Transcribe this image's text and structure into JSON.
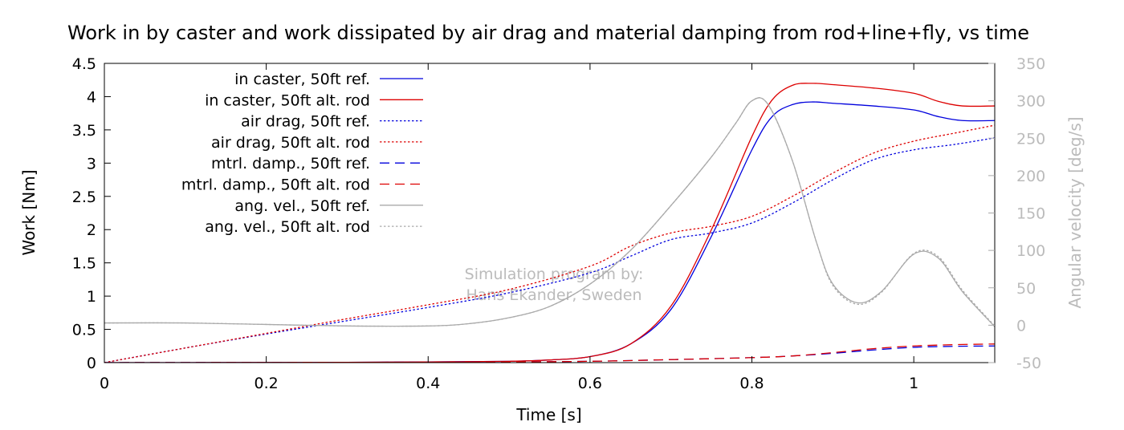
{
  "chart_data": {
    "type": "line",
    "title": "Work in by caster and work dissipated by air drag and material damping from rod+line+fly, vs time",
    "xlabel": "Time [s]",
    "ylabel": "Work [Nm]",
    "y2label": "Angular velocity [deg/s]",
    "xlim": [
      0,
      1.1
    ],
    "ylim": [
      0,
      4.5
    ],
    "y2lim": [
      -50,
      350
    ],
    "grid": false,
    "legend_position": "top-left",
    "xticks": [
      "0",
      "0.2",
      "0.4",
      "0.6",
      "0.8",
      "1"
    ],
    "xtick_values": [
      0,
      0.2,
      0.4,
      0.6,
      0.8,
      1.0
    ],
    "yticks": [
      "0",
      "0.5",
      "1",
      "1.5",
      "2",
      "2.5",
      "3",
      "3.5",
      "4",
      "4.5"
    ],
    "ytick_values": [
      0,
      0.5,
      1,
      1.5,
      2,
      2.5,
      3,
      3.5,
      4,
      4.5
    ],
    "y2ticks": [
      "-50",
      "0",
      "50",
      "100",
      "150",
      "200",
      "250",
      "300",
      "350"
    ],
    "y2tick_values": [
      -50,
      0,
      50,
      100,
      150,
      200,
      250,
      300,
      350
    ],
    "watermark": [
      "Simulation program by:",
      "Hans Ekander, Sweden"
    ],
    "colors": {
      "blue": "#0000dd",
      "red": "#dd0000",
      "gray": "#aaaaaa",
      "gray_text": "#bbbbbb"
    },
    "series": [
      {
        "name": "in caster, 50ft ref.",
        "color": "#0000dd",
        "dash": "solid",
        "axis": "left",
        "x": [
          0,
          0.1,
          0.2,
          0.3,
          0.4,
          0.5,
          0.55,
          0.6,
          0.65,
          0.7,
          0.75,
          0.8,
          0.825,
          0.85,
          0.875,
          0.9,
          0.95,
          1.0,
          1.03,
          1.06,
          1.1
        ],
        "y": [
          0,
          0,
          0.002,
          0.005,
          0.01,
          0.02,
          0.04,
          0.09,
          0.28,
          0.8,
          1.9,
          3.2,
          3.7,
          3.88,
          3.92,
          3.9,
          3.86,
          3.8,
          3.7,
          3.64,
          3.64
        ]
      },
      {
        "name": "in caster, 50ft alt. rod",
        "color": "#dd0000",
        "dash": "solid",
        "axis": "left",
        "x": [
          0,
          0.1,
          0.2,
          0.3,
          0.4,
          0.5,
          0.55,
          0.6,
          0.65,
          0.7,
          0.75,
          0.8,
          0.825,
          0.85,
          0.875,
          0.9,
          0.95,
          1.0,
          1.03,
          1.06,
          1.1
        ],
        "y": [
          0,
          0,
          0.002,
          0.005,
          0.01,
          0.02,
          0.04,
          0.09,
          0.28,
          0.85,
          2.0,
          3.4,
          3.95,
          4.17,
          4.2,
          4.18,
          4.13,
          4.05,
          3.93,
          3.86,
          3.86
        ]
      },
      {
        "name": "air drag, 50ft ref.",
        "color": "#0000dd",
        "dash": "short",
        "axis": "left",
        "x": [
          0,
          0.1,
          0.2,
          0.3,
          0.4,
          0.5,
          0.6,
          0.65,
          0.7,
          0.75,
          0.8,
          0.85,
          0.9,
          0.95,
          1.0,
          1.05,
          1.1
        ],
        "y": [
          0,
          0.22,
          0.43,
          0.63,
          0.83,
          1.05,
          1.35,
          1.6,
          1.85,
          1.95,
          2.1,
          2.4,
          2.75,
          3.05,
          3.2,
          3.28,
          3.38
        ]
      },
      {
        "name": "air drag, 50ft alt. rod",
        "color": "#dd0000",
        "dash": "short",
        "axis": "left",
        "x": [
          0,
          0.1,
          0.2,
          0.3,
          0.4,
          0.5,
          0.6,
          0.65,
          0.7,
          0.75,
          0.8,
          0.85,
          0.9,
          0.95,
          1.0,
          1.05,
          1.1
        ],
        "y": [
          0,
          0.22,
          0.44,
          0.66,
          0.87,
          1.1,
          1.45,
          1.75,
          1.95,
          2.05,
          2.2,
          2.5,
          2.85,
          3.15,
          3.33,
          3.45,
          3.57
        ]
      },
      {
        "name": "mtrl. damp., 50ft ref.",
        "color": "#0000dd",
        "dash": "long",
        "axis": "left",
        "x": [
          0,
          0.2,
          0.4,
          0.5,
          0.6,
          0.7,
          0.8,
          0.85,
          0.9,
          0.95,
          1.0,
          1.05,
          1.1
        ],
        "y": [
          0,
          0.003,
          0.006,
          0.01,
          0.02,
          0.045,
          0.075,
          0.1,
          0.14,
          0.19,
          0.23,
          0.245,
          0.25
        ]
      },
      {
        "name": "mtrl. damp., 50ft alt. rod",
        "color": "#dd0000",
        "dash": "long",
        "axis": "left",
        "x": [
          0,
          0.2,
          0.4,
          0.5,
          0.6,
          0.7,
          0.8,
          0.85,
          0.9,
          0.95,
          1.0,
          1.05,
          1.1
        ],
        "y": [
          0,
          0.003,
          0.006,
          0.01,
          0.02,
          0.045,
          0.075,
          0.1,
          0.15,
          0.21,
          0.25,
          0.27,
          0.28
        ]
      },
      {
        "name": "ang. vel., 50ft ref.",
        "color": "#aaaaaa",
        "dash": "solid",
        "axis": "right",
        "x": [
          0,
          0.1,
          0.2,
          0.3,
          0.4,
          0.45,
          0.5,
          0.55,
          0.6,
          0.65,
          0.7,
          0.75,
          0.78,
          0.8,
          0.82,
          0.85,
          0.88,
          0.9,
          0.93,
          0.96,
          1.0,
          1.03,
          1.06,
          1.1
        ],
        "y": [
          3,
          3,
          1,
          -1,
          -1,
          2,
          10,
          25,
          55,
          100,
          160,
          225,
          270,
          300,
          295,
          220,
          110,
          55,
          30,
          45,
          95,
          90,
          45,
          -2
        ]
      },
      {
        "name": "ang. vel., 50ft alt. rod",
        "color": "#aaaaaa",
        "dash": "short",
        "axis": "right",
        "x": [
          0,
          0.1,
          0.2,
          0.3,
          0.4,
          0.45,
          0.5,
          0.55,
          0.6,
          0.65,
          0.7,
          0.75,
          0.78,
          0.8,
          0.82,
          0.85,
          0.88,
          0.9,
          0.93,
          0.96,
          1.0,
          1.03,
          1.06,
          1.1
        ],
        "y": [
          3,
          3,
          1,
          -1,
          -1,
          2,
          10,
          25,
          55,
          100,
          160,
          225,
          270,
          300,
          295,
          220,
          110,
          53,
          28,
          44,
          96,
          92,
          47,
          -1
        ]
      }
    ]
  }
}
